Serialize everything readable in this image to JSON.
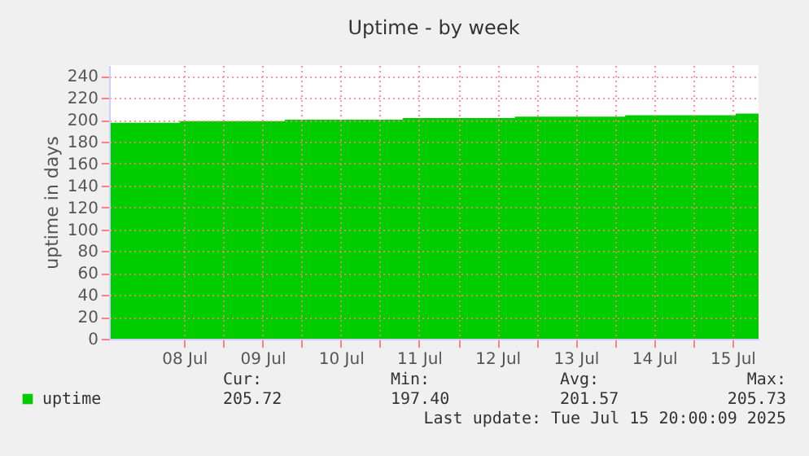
{
  "chart_data": {
    "type": "area",
    "title": "Uptime - by week",
    "ylabel": "uptime in days",
    "x": [
      "2025-07-07T13:00",
      "2025-07-08T10:45",
      "2025-07-09T18:50",
      "2025-07-11T07:00",
      "2025-07-12T17:20",
      "2025-07-14T03:10",
      "2025-07-15T13:00",
      "2025-07-15T20:00"
    ],
    "series": [
      {
        "name": "uptime",
        "color": "#00cc00",
        "values": [
          197.4,
          198.8,
          200.2,
          201.6,
          202.9,
          204.3,
          205.7,
          205.7
        ]
      }
    ],
    "xlim": [
      "2025-07-07T13:00",
      "2025-07-15T20:00"
    ],
    "xticks": [
      {
        "value": "2025-07-08T12:00",
        "label": "08 Jul"
      },
      {
        "value": "2025-07-09T00:00",
        "label": null
      },
      {
        "value": "2025-07-09T12:00",
        "label": "09 Jul"
      },
      {
        "value": "2025-07-10T00:00",
        "label": null
      },
      {
        "value": "2025-07-10T12:00",
        "label": "10 Jul"
      },
      {
        "value": "2025-07-11T00:00",
        "label": null
      },
      {
        "value": "2025-07-11T12:00",
        "label": "11 Jul"
      },
      {
        "value": "2025-07-12T00:00",
        "label": null
      },
      {
        "value": "2025-07-12T12:00",
        "label": "12 Jul"
      },
      {
        "value": "2025-07-13T00:00",
        "label": null
      },
      {
        "value": "2025-07-13T12:00",
        "label": "13 Jul"
      },
      {
        "value": "2025-07-14T00:00",
        "label": null
      },
      {
        "value": "2025-07-14T12:00",
        "label": "14 Jul"
      },
      {
        "value": "2025-07-15T00:00",
        "label": null
      },
      {
        "value": "2025-07-15T12:00",
        "label": "15 Jul"
      }
    ],
    "ylim": [
      0,
      250
    ],
    "yticks": [
      0,
      20,
      40,
      60,
      80,
      100,
      120,
      140,
      160,
      180,
      200,
      220,
      240
    ],
    "grid": true,
    "legend": "bottom",
    "annotations": [
      "Cur:",
      "205.72",
      "Min:",
      "197.40",
      "Avg:",
      "201.57",
      "Max:",
      "205.73",
      "Last update: Tue Jul 15 20:00:09 2025"
    ]
  }
}
